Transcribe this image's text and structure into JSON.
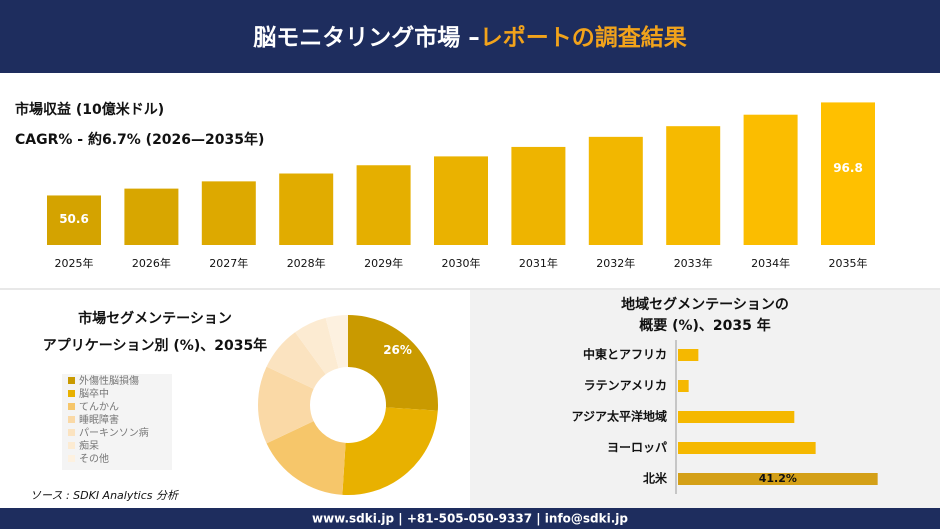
{
  "header": {
    "title_main": "脳モニタリング市場 –",
    "title_highlight": "レポートの調査結果"
  },
  "source": "ソース : SDKI Analytics 分析",
  "footer": "www.sdki.jp | +81-505-050-9337 | info@sdki.jp",
  "chart_data": [
    {
      "type": "bar",
      "title": "市場収益 (10億米ドル)",
      "subtitle": "CAGR% - 約6.7% (2026—2035年)",
      "categories": [
        "2025年",
        "2026年",
        "2027年",
        "2028年",
        "2029年",
        "2030年",
        "2031年",
        "2032年",
        "2033年",
        "2034年",
        "2035年"
      ],
      "values": [
        50.6,
        54.0,
        57.6,
        61.5,
        65.6,
        70.0,
        74.7,
        79.7,
        85.0,
        90.7,
        96.8
      ],
      "value_labels": [
        "50.6",
        null,
        null,
        null,
        null,
        null,
        null,
        null,
        null,
        null,
        "96.8"
      ],
      "ylim": [
        26,
        98
      ],
      "color_range": [
        "#d4a300",
        "#ffc000"
      ]
    },
    {
      "type": "donut",
      "title": "市場セグメンテーション",
      "subtitle": "アプリケーション別 (%)、2035年",
      "categories": [
        "外傷性脳損傷",
        "脳卒中",
        "てんかん",
        "睡眠障害",
        "パーキンソン病",
        "痴呆",
        "その他"
      ],
      "values": [
        26,
        25,
        17,
        14,
        8,
        6,
        4
      ],
      "value_labels": [
        "26%",
        null,
        null,
        null,
        null,
        null,
        null
      ],
      "colors": [
        "#c99a00",
        "#e8b100",
        "#f6c66a",
        "#fad9a6",
        "#fbe3c0",
        "#fcebd2",
        "#fdf1e0"
      ]
    },
    {
      "type": "hbar",
      "title": "地域セグメンテーションの",
      "subtitle": "概要 (%)、2035 年",
      "categories": [
        "中東とアフリカ",
        "ラテンアメリカ",
        "アジア太平洋地域",
        "ヨーロッパ",
        "北米"
      ],
      "values": [
        4.2,
        2.2,
        24.0,
        28.4,
        41.2
      ],
      "value_labels": [
        null,
        null,
        null,
        null,
        "41.2%"
      ],
      "colors": [
        "#f5b800",
        "#f5b800",
        "#f5b800",
        "#f5b800",
        "#d4a017"
      ],
      "xlim": [
        0,
        52
      ]
    }
  ]
}
